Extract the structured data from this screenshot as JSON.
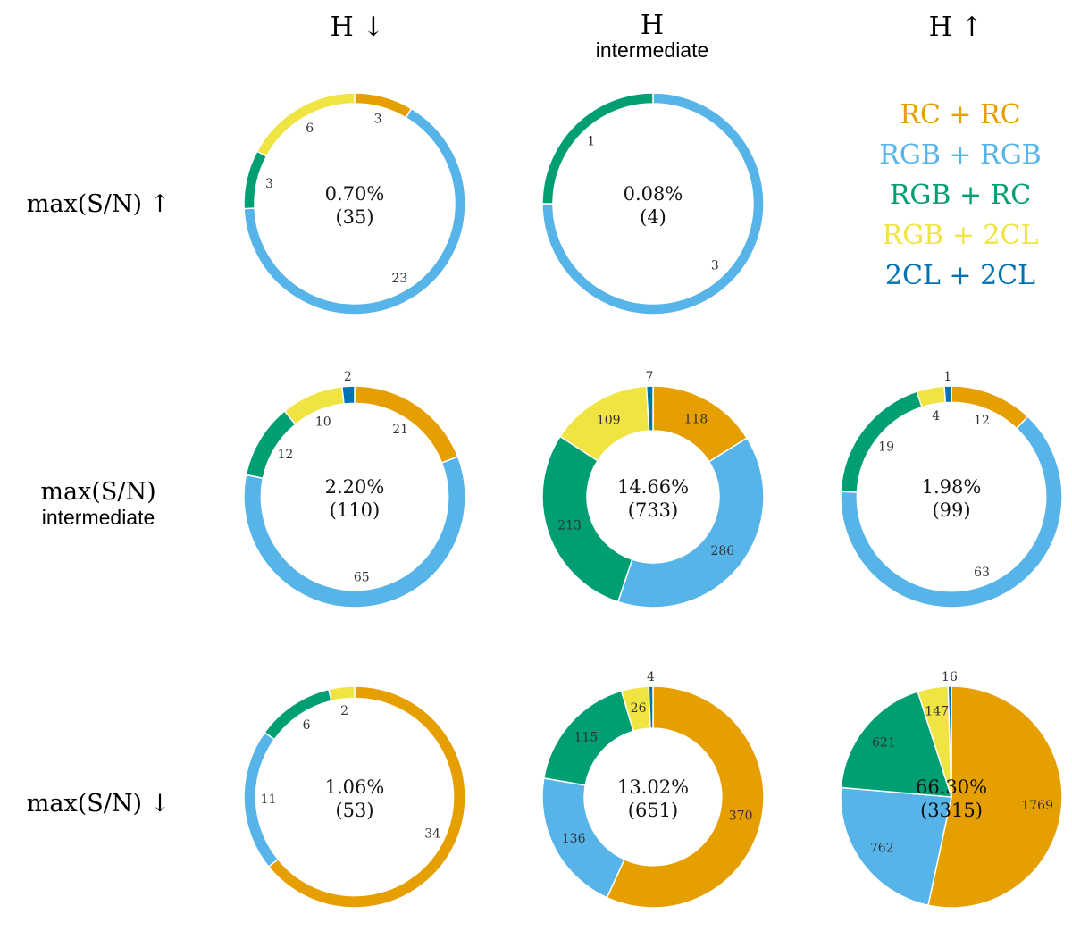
{
  "columns": [
    {
      "label": "H ↓",
      "sub": ""
    },
    {
      "label": "H",
      "sub": "intermediate"
    },
    {
      "label": "H ↑",
      "sub": ""
    }
  ],
  "rows": [
    {
      "label": "max(S/N) ↑",
      "sub": ""
    },
    {
      "label": "max(S/N)",
      "sub": "intermediate"
    },
    {
      "label": "max(S/N) ↓",
      "sub": ""
    }
  ],
  "legend": [
    {
      "label": "RC + RC",
      "color": "#E69F00"
    },
    {
      "label": "RGB + RGB",
      "color": "#56B4E9"
    },
    {
      "label": "RGB + RC",
      "color": "#009E73"
    },
    {
      "label": "RGB + 2CL",
      "color": "#F0E442"
    },
    {
      "label": "2CL + 2CL",
      "color": "#0072B2"
    }
  ],
  "chart_data": [
    {
      "type": "pie",
      "row": 0,
      "col": 0,
      "center_percent": "0.70%",
      "center_count": "(35)",
      "values": [
        3,
        23,
        3,
        6,
        0
      ],
      "labels": [
        "3",
        "23",
        "3",
        "6",
        ""
      ]
    },
    {
      "type": "pie",
      "row": 0,
      "col": 1,
      "center_percent": "0.08%",
      "center_count": "(4)",
      "values": [
        0,
        3,
        1,
        0,
        0
      ],
      "labels": [
        "",
        "3",
        "1",
        "",
        ""
      ]
    },
    {
      "type": "pie",
      "row": 1,
      "col": 0,
      "center_percent": "2.20%",
      "center_count": "(110)",
      "values": [
        21,
        65,
        12,
        10,
        2
      ],
      "labels": [
        "21",
        "65",
        "12",
        "10",
        "2"
      ]
    },
    {
      "type": "pie",
      "row": 1,
      "col": 1,
      "center_percent": "14.66%",
      "center_count": "(733)",
      "values": [
        118,
        286,
        213,
        109,
        7
      ],
      "labels": [
        "118",
        "286",
        "213",
        "109",
        "7"
      ]
    },
    {
      "type": "pie",
      "row": 1,
      "col": 2,
      "center_percent": "1.98%",
      "center_count": "(99)",
      "values": [
        12,
        63,
        19,
        4,
        1
      ],
      "labels": [
        "12",
        "63",
        "19",
        "4",
        "1"
      ]
    },
    {
      "type": "pie",
      "row": 2,
      "col": 0,
      "center_percent": "1.06%",
      "center_count": "(53)",
      "values": [
        34,
        11,
        6,
        2,
        0
      ],
      "labels": [
        "34",
        "11",
        "6",
        "2",
        ""
      ]
    },
    {
      "type": "pie",
      "row": 2,
      "col": 1,
      "center_percent": "13.02%",
      "center_count": "(651)",
      "values": [
        370,
        136,
        115,
        26,
        4
      ],
      "labels": [
        "370",
        "136",
        "115",
        "26",
        "4"
      ]
    },
    {
      "type": "pie",
      "row": 2,
      "col": 2,
      "center_percent": "66.30%",
      "center_count": "(3315)",
      "values": [
        1769,
        762,
        621,
        147,
        16
      ],
      "labels": [
        "1769",
        "762",
        "621",
        "147",
        "16"
      ]
    }
  ]
}
